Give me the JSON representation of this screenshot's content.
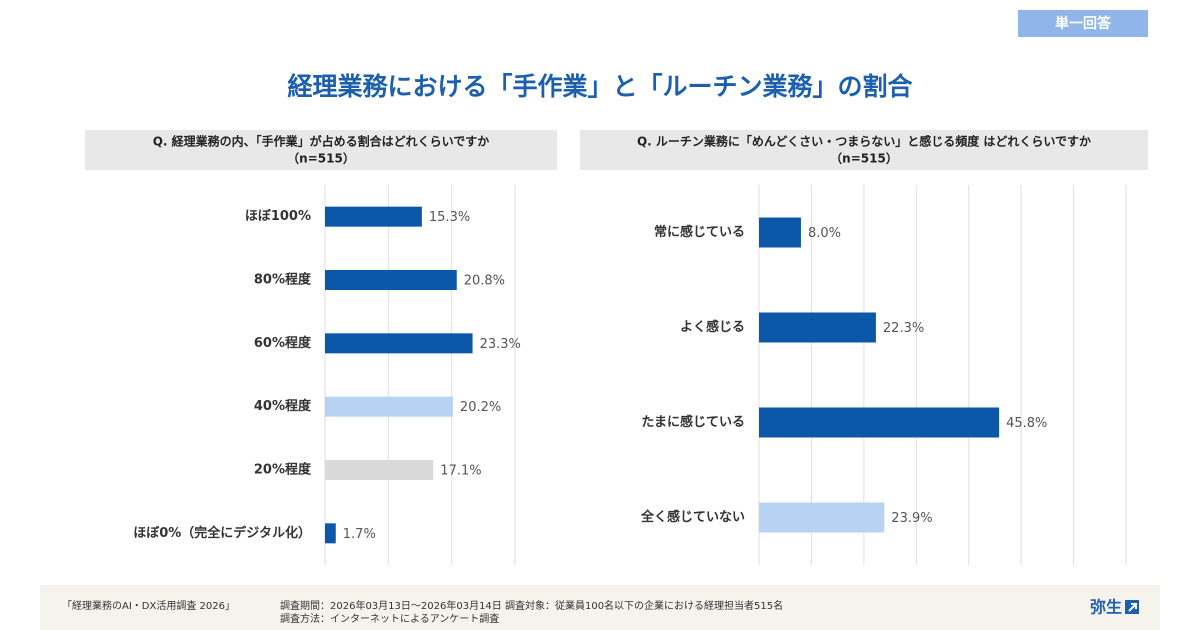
{
  "badge": "単一回答",
  "title": "経理業務における「手作業」と「ルーチン業務」の割合",
  "chart_data": [
    {
      "type": "bar",
      "orientation": "horizontal",
      "title": "Q. 経理業務の内、「手作業」が占める割合はどれくらいですか",
      "subtitle": "（n=515）",
      "categories": [
        "ほぼ100%",
        "80%程度",
        "60%程度",
        "40%程度",
        "20%程度",
        "ほぼ0%（完全にデジタル化）"
      ],
      "values": [
        15.3,
        20.8,
        23.3,
        20.2,
        17.1,
        1.7
      ],
      "value_labels": [
        "15.3%",
        "20.8%",
        "23.3%",
        "20.2%",
        "17.1%",
        "1.7%"
      ],
      "colors": [
        "#0b57a8",
        "#0b57a8",
        "#0b57a8",
        "#b7d3f3",
        "#d9d9d9",
        "#0b57a8"
      ],
      "xlim": [
        0,
        30
      ],
      "xticks": [
        0,
        10,
        20,
        30
      ],
      "grid": true
    },
    {
      "type": "bar",
      "orientation": "horizontal",
      "title": "Q. ルーチン業務に「めんどくさい・つまらない」と感じる頻度 はどれくらいですか",
      "subtitle": "（n=515）",
      "categories": [
        "常に感じている",
        "よく感じる",
        "たまに感じている",
        "全く感じていない"
      ],
      "values": [
        8.0,
        22.3,
        45.8,
        23.9
      ],
      "value_labels": [
        "8.0%",
        "22.3%",
        "45.8%",
        "23.9%"
      ],
      "colors": [
        "#0b57a8",
        "#0b57a8",
        "#0b57a8",
        "#b7d3f3"
      ],
      "xlim": [
        0,
        70
      ],
      "xticks": [
        0,
        10,
        20,
        30,
        40,
        50,
        60,
        70
      ],
      "grid": true
    }
  ],
  "footer": {
    "source": "「経理業務のAI・DX活用調査 2026」",
    "period": "調査期間：2026年03月13日〜2026年03月14日 調査対象：従業員100名以下の企業における経理担当者515名",
    "method": "調査方法：インターネットによるアンケート調査",
    "logo": "弥生"
  }
}
